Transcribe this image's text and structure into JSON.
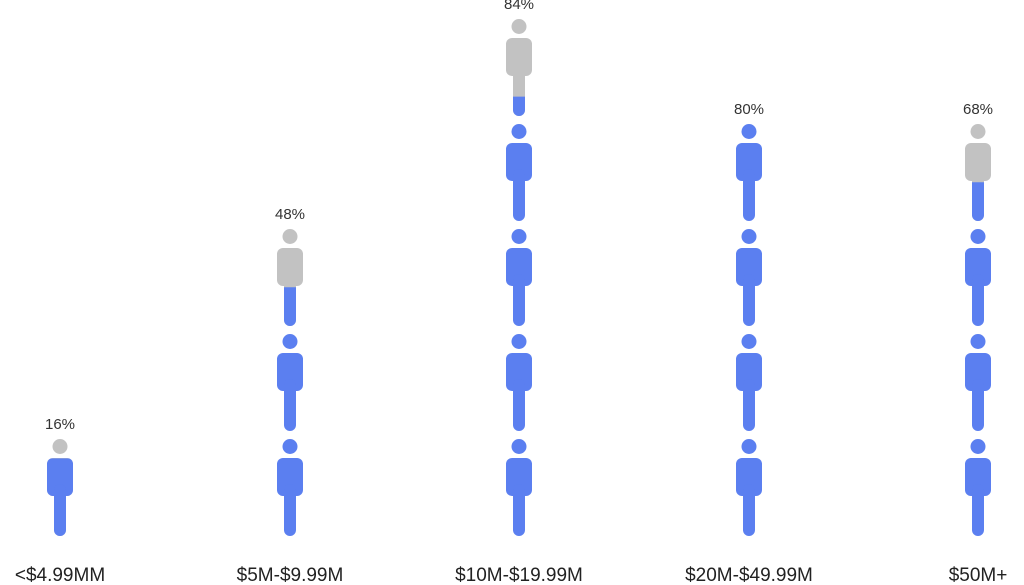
{
  "chart_data": {
    "type": "pictograph",
    "categories": [
      "<$4.99MM",
      "$5M-$9.99M",
      "$10M-$19.99M",
      "$20M-$49.99M",
      "$50M+"
    ],
    "values": [
      16,
      48,
      84,
      80,
      68
    ],
    "value_labels": [
      "16%",
      "48%",
      "84%",
      "80%",
      "68%"
    ],
    "value_suffix": "%",
    "icon_unit_percent": 20,
    "title": "",
    "xlabel": "",
    "ylabel": "",
    "ylim": [
      0,
      100
    ],
    "grid": false,
    "legend": "none"
  },
  "colors": {
    "filled": "#5b7ff0",
    "empty": "#c2c2c2",
    "label_text": "#333333"
  },
  "icons": {
    "unit": "person-icon"
  }
}
